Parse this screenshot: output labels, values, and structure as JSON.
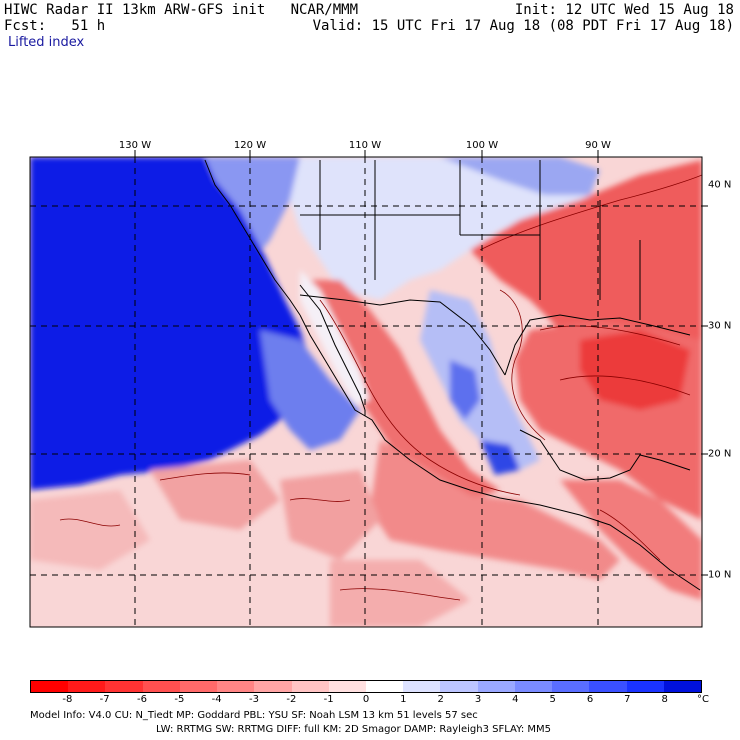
{
  "header": {
    "left_line1": "HIWC Radar II 13km ARW-GFS init   NCAR/MMM",
    "left_line2": "Fcst:   51 h",
    "field": "Lifted index",
    "right_line1": "Init: 12 UTC Wed 15 Aug 18",
    "right_line2": "Valid: 15 UTC Fri 17 Aug 18 (08 PDT Fri 17 Aug 18)"
  },
  "map": {
    "lon_labels": [
      "130 W",
      "120 W",
      "110 W",
      "100 W",
      "90 W"
    ],
    "lat_labels": [
      "40 N",
      "30 N",
      "20 N",
      "10 N"
    ],
    "colors": {
      "deep_blue": "#0a1ee6",
      "mid_blue": "#7d8cf0",
      "light_blue": "#d6dcfa",
      "light_pink": "#f8d0d0",
      "mid_red": "#f28484",
      "strong_red": "#ee4040",
      "contour": "#8b0000",
      "border": "#000000"
    }
  },
  "colorbar": {
    "ticks": [
      "-8",
      "-7",
      "-6",
      "-5",
      "-4",
      "-3",
      "-2",
      "-1",
      "0",
      "1",
      "2",
      "3",
      "4",
      "5",
      "6",
      "7",
      "8"
    ],
    "unit": "°C",
    "colors": [
      "#ff0000",
      "#ff1a1a",
      "#ff3333",
      "#ff5050",
      "#ff6a6a",
      "#ff8585",
      "#ffa5a5",
      "#ffc4c4",
      "#ffe0e0",
      "#ffffff",
      "#dde2ff",
      "#bcc5ff",
      "#9aa8ff",
      "#7a8bff",
      "#5a6eff",
      "#3a50ff",
      "#1a33ff",
      "#0011dd"
    ]
  },
  "model_info": {
    "line1": "Model Info: V4.0    CU: N_Tiedt  MP: Goddard     PBL: YSU      SF: Noah LSM     13 km   51 levels   57 sec",
    "line2": "LW: RRTMG    SW: RRTMG   DIFF: full   KM: 2D Smagor DAMP: Rayleigh3  SFLAY: MM5"
  }
}
